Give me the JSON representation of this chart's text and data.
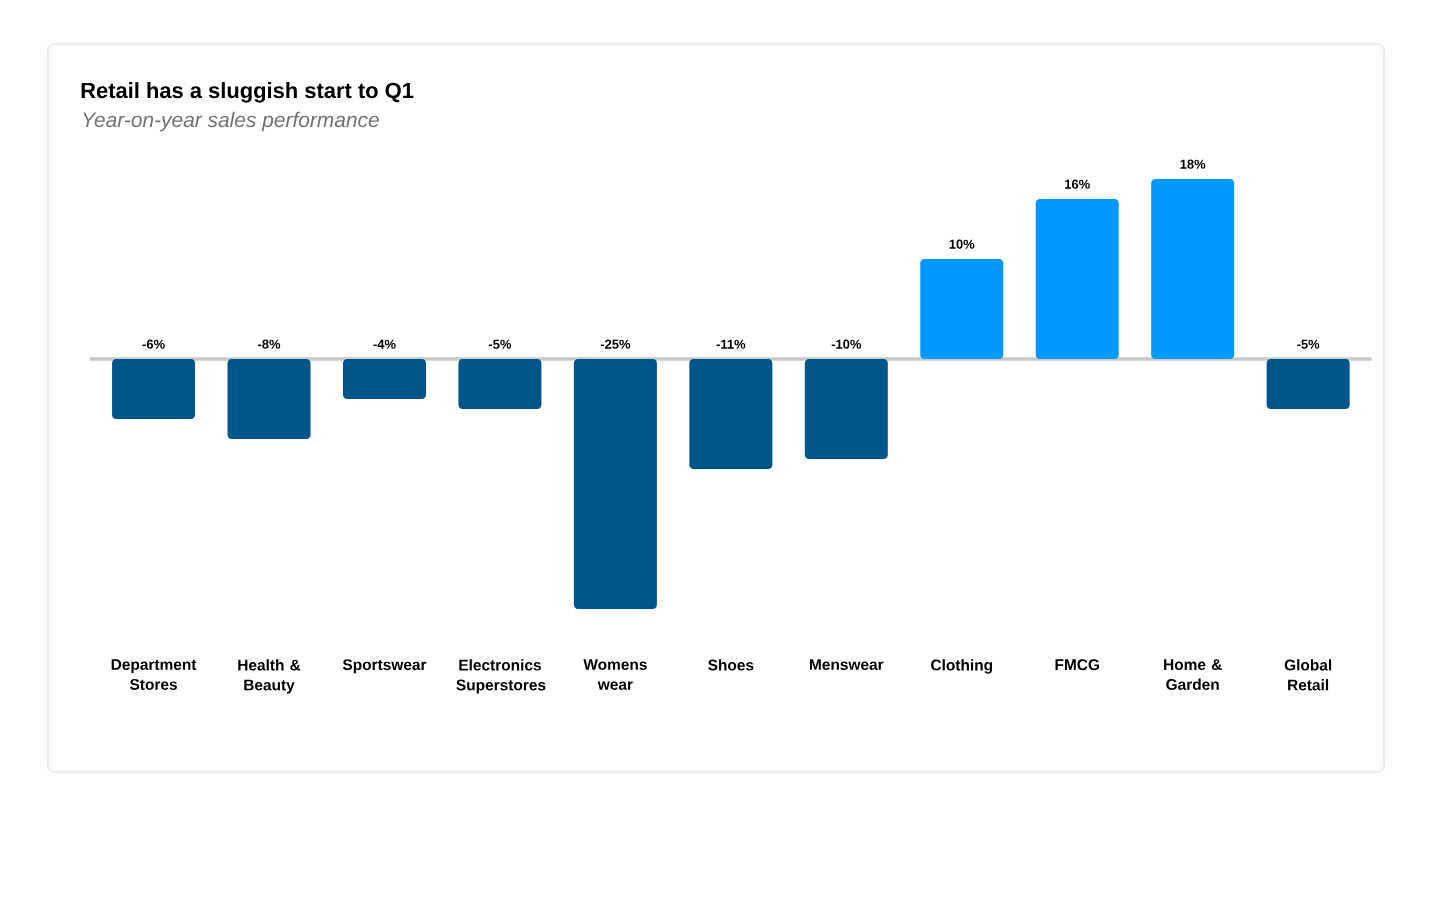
{
  "chart_data": {
    "type": "bar",
    "title": "Retail has a sluggish start to Q1",
    "subtitle": "Year-on-year sales performance",
    "categories": [
      "Department Stores",
      "Health & Beauty",
      "Sportswear",
      "Electronics Superstores",
      "Womens wear",
      "Shoes",
      "Menswear",
      "Clothing",
      "FMCG",
      "Home & Garden",
      "Global Retail"
    ],
    "values": [
      -6,
      -8,
      -4,
      -5,
      -25,
      -11,
      -10,
      10,
      16,
      18,
      -5
    ],
    "value_labels": [
      "-6%",
      "-8%",
      "-4%",
      "-5%",
      "-25%",
      "-11%",
      "-10%",
      "10%",
      "16%",
      "18%",
      "-5%"
    ],
    "colors": [
      "#00558a",
      "#00558a",
      "#00558a",
      "#00558a",
      "#00558a",
      "#00558a",
      "#00558a",
      "#0099ff",
      "#0099ff",
      "#0099ff",
      "#00558a"
    ]
  }
}
